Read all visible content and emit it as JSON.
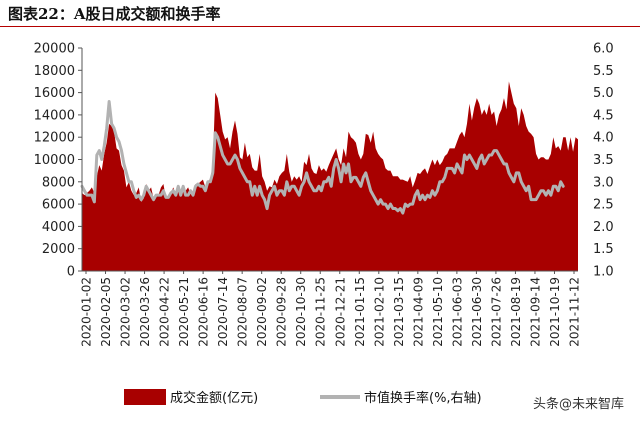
{
  "figure_title": "图表22：A股日成交额和换手率",
  "watermark": "头条@未来智库",
  "colors": {
    "turnover_amount": "#a80000",
    "turnover_rate": "#b2b2b2",
    "title_rule": "#b50000"
  },
  "chart_data": {
    "type": "area",
    "title": "图表22：A股日成交额和换手率",
    "legend_position": "bottom",
    "grid": false,
    "x_tick_labels": [
      "2020-01-02",
      "2020-02-05",
      "2020-03-02",
      "2020-03-26",
      "2020-04-22",
      "2020-05-21",
      "2020-06-16",
      "2020-07-14",
      "2020-08-07",
      "2020-09-02",
      "2020-09-28",
      "2020-10-30",
      "2020-11-25",
      "2020-12-21",
      "2021-01-15",
      "2021-02-10",
      "2021-03-15",
      "2021-04-09",
      "2021-05-10",
      "2021-06-03",
      "2021-06-30",
      "2021-07-26",
      "2021-08-19",
      "2021-09-14",
      "2021-10-19",
      "2021-11-12"
    ],
    "left_axis": {
      "ylim": [
        0,
        20000
      ],
      "ticks": [
        "0",
        "2000",
        "4000",
        "6000",
        "8000",
        "10000",
        "12000",
        "14000",
        "16000",
        "18000",
        "20000"
      ]
    },
    "right_axis": {
      "ylim": [
        1.0,
        6.0
      ],
      "ticks": [
        "1.0",
        "1.5",
        "2.0",
        "2.5",
        "3.0",
        "3.5",
        "4.0",
        "4.5",
        "5.0",
        "5.5",
        "6.0"
      ]
    },
    "series": [
      {
        "name": "成交金额(亿元)",
        "type": "area",
        "axis": "left",
        "values": [
          7000,
          6800,
          7000,
          7200,
          7500,
          7000,
          8500,
          9500,
          9000,
          10500,
          11500,
          13200,
          13000,
          12500,
          11000,
          10800,
          9500,
          9000,
          7500,
          8000,
          7200,
          6800,
          7000,
          7500,
          6200,
          6500,
          7800,
          7200,
          7500,
          6500,
          6800,
          6800,
          7500,
          7800,
          6500,
          6800,
          7000,
          7500,
          6800,
          7500,
          6800,
          7500,
          7200,
          7500,
          6900,
          7000,
          7800,
          7800,
          8000,
          8200,
          7500,
          8000,
          8300,
          9500,
          16000,
          15500,
          14000,
          12500,
          11800,
          12000,
          11000,
          12500,
          13500,
          12300,
          10200,
          10000,
          11500,
          10200,
          10500,
          9300,
          9000,
          9000,
          10500,
          8500,
          8000,
          7200,
          7600,
          7500,
          8200,
          7800,
          8500,
          8800,
          9000,
          10500,
          8900,
          8000,
          8500,
          8200,
          8500,
          8000,
          9800,
          9500,
          10500,
          9200,
          8800,
          8700,
          9500,
          9000,
          9200,
          8900,
          9500,
          10000,
          10500,
          11000,
          10000,
          9500,
          11000,
          10200,
          12500,
          12000,
          11800,
          11500,
          10500,
          10000,
          10500,
          12300,
          12200,
          11500,
          12500,
          11000,
          10500,
          10200,
          10000,
          9200,
          9000,
          9000,
          8500,
          8500,
          8500,
          8200,
          8200,
          8100,
          8000,
          8500,
          7500,
          8100,
          8800,
          8700,
          9000,
          9200,
          8700,
          9400,
          10000,
          9500,
          10000,
          9500,
          9800,
          10300,
          10500,
          11000,
          11000,
          11000,
          11600,
          12200,
          12500,
          12000,
          13200,
          15000,
          13500,
          14700,
          15500,
          15000,
          14000,
          14500,
          14000,
          15000,
          14000,
          14300,
          13000,
          14000,
          14500,
          15500,
          14500,
          17000,
          16000,
          15000,
          14600,
          13000,
          14600,
          14000,
          13000,
          12500,
          12300,
          12000,
          10500,
          10000,
          10200,
          10200,
          10000,
          10000,
          10500,
          12000,
          11000,
          11200,
          10800,
          12000,
          12000,
          10800,
          12000,
          10700,
          12000,
          11800
        ]
      },
      {
        "name": "市值换手率(%,右轴)",
        "type": "line",
        "axis": "right",
        "values": [
          2.9,
          2.8,
          2.7,
          2.7,
          2.7,
          2.55,
          3.6,
          3.7,
          3.5,
          3.8,
          4.2,
          4.8,
          4.3,
          4.2,
          4.0,
          3.9,
          3.7,
          3.4,
          3.2,
          3.0,
          3.0,
          2.8,
          2.65,
          2.7,
          2.6,
          2.7,
          2.9,
          2.8,
          2.7,
          2.6,
          2.7,
          2.7,
          2.7,
          2.8,
          2.65,
          2.65,
          2.75,
          2.8,
          2.7,
          2.9,
          2.7,
          2.9,
          2.7,
          2.7,
          2.8,
          2.7,
          2.9,
          2.95,
          2.9,
          2.9,
          2.8,
          3.0,
          3.0,
          3.2,
          4.1,
          4.0,
          3.8,
          3.6,
          3.5,
          3.4,
          3.4,
          3.5,
          3.6,
          3.5,
          3.3,
          3.2,
          3.1,
          3.0,
          3.0,
          2.7,
          2.9,
          2.7,
          2.9,
          2.7,
          2.6,
          2.4,
          2.7,
          2.8,
          2.9,
          2.7,
          2.8,
          2.8,
          2.7,
          3.0,
          2.8,
          2.9,
          2.9,
          2.8,
          2.7,
          2.9,
          3.0,
          3.2,
          3.0,
          2.9,
          2.8,
          2.8,
          2.9,
          2.8,
          3.0,
          3.0,
          3.1,
          2.9,
          3.3,
          3.5,
          3.3,
          3.0,
          3.4,
          3.2,
          3.4,
          3.0,
          3.1,
          3.1,
          3.0,
          2.9,
          3.1,
          3.2,
          3.0,
          2.8,
          2.7,
          2.6,
          2.5,
          2.6,
          2.5,
          2.5,
          2.4,
          2.5,
          2.4,
          2.4,
          2.35,
          2.4,
          2.3,
          2.5,
          2.45,
          2.5,
          2.5,
          2.7,
          2.8,
          2.6,
          2.7,
          2.6,
          2.7,
          2.65,
          2.8,
          2.7,
          2.8,
          3.0,
          3.0,
          3.1,
          3.3,
          3.3,
          3.3,
          3.2,
          3.4,
          3.3,
          3.2,
          3.6,
          3.5,
          3.6,
          3.5,
          3.4,
          3.3,
          3.5,
          3.6,
          3.4,
          3.5,
          3.6,
          3.6,
          3.7,
          3.7,
          3.6,
          3.5,
          3.4,
          3.4,
          3.2,
          3.1,
          3.0,
          3.2,
          3.2,
          3.0,
          2.9,
          2.8,
          2.9,
          2.6,
          2.6,
          2.6,
          2.7,
          2.8,
          2.8,
          2.7,
          2.8,
          2.7,
          2.9,
          2.9,
          2.8,
          3.0,
          2.9
        ]
      }
    ]
  }
}
